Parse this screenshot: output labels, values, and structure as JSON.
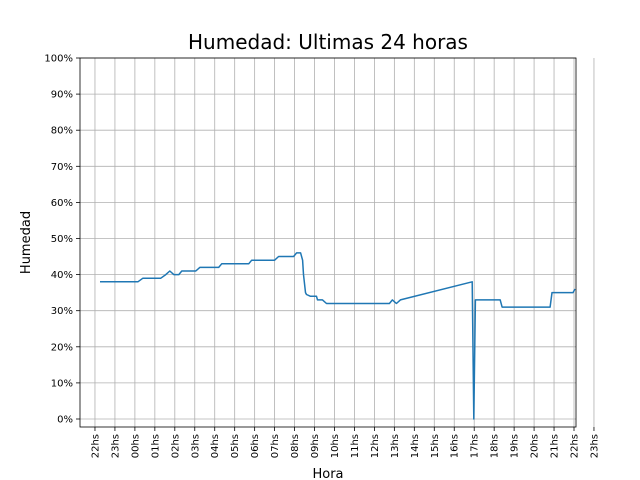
{
  "chart_data": {
    "type": "line",
    "title": "Humedad: Ultimas 24 horas",
    "xlabel": "Hora",
    "ylabel": "Humedad",
    "grid": true,
    "ylim": [
      0,
      100
    ],
    "xlim": [
      -1.75,
      23.1
    ],
    "x_tick_values": [
      -1,
      0,
      1,
      2,
      3,
      4,
      5,
      6,
      7,
      8,
      9,
      10,
      11,
      12,
      13,
      14,
      15,
      16,
      17,
      18,
      19,
      20,
      21,
      22,
      23,
      24
    ],
    "x_tick_labels": [
      "22hs",
      "23hs",
      "00hs",
      "01hs",
      "02hs",
      "03hs",
      "04hs",
      "05hs",
      "06hs",
      "07hs",
      "08hs",
      "09hs",
      "10hs",
      "11hs",
      "12hs",
      "13hs",
      "14hs",
      "15hs",
      "16hs",
      "17hs",
      "18hs",
      "19hs",
      "20hs",
      "21hs",
      "22hs",
      "23hs"
    ],
    "y_tick_values": [
      0,
      10,
      20,
      30,
      40,
      50,
      60,
      70,
      80,
      90,
      100
    ],
    "y_tick_labels": [
      "0%",
      "10%",
      "20%",
      "30%",
      "40%",
      "50%",
      "60%",
      "70%",
      "80%",
      "90%",
      "100%"
    ],
    "series": [
      {
        "color": "#1f77b4",
        "x": [
          -0.75,
          1.15,
          1.4,
          2.3,
          2.55,
          2.75,
          2.95,
          3.2,
          3.35,
          4.05,
          4.25,
          5.2,
          5.35,
          6.7,
          6.85,
          8.0,
          8.2,
          8.95,
          9.1,
          9.3,
          9.4,
          9.45,
          9.55,
          9.6,
          9.8,
          10.1,
          10.15,
          10.4,
          10.6,
          13.75,
          13.9,
          14.1,
          14.3,
          17.9,
          17.98,
          18.06,
          19.3,
          19.4,
          21.8,
          21.9,
          22.95,
          23.05
        ],
        "y": [
          38,
          38,
          39,
          39,
          40,
          41,
          40,
          40,
          41,
          41,
          42,
          42,
          43,
          43,
          44,
          44,
          45,
          45,
          46,
          46,
          44,
          40,
          35,
          34.5,
          34,
          34,
          33,
          33,
          32,
          32,
          33,
          32,
          33,
          38,
          0,
          33,
          33,
          31,
          31,
          35,
          35,
          36
        ]
      }
    ]
  }
}
